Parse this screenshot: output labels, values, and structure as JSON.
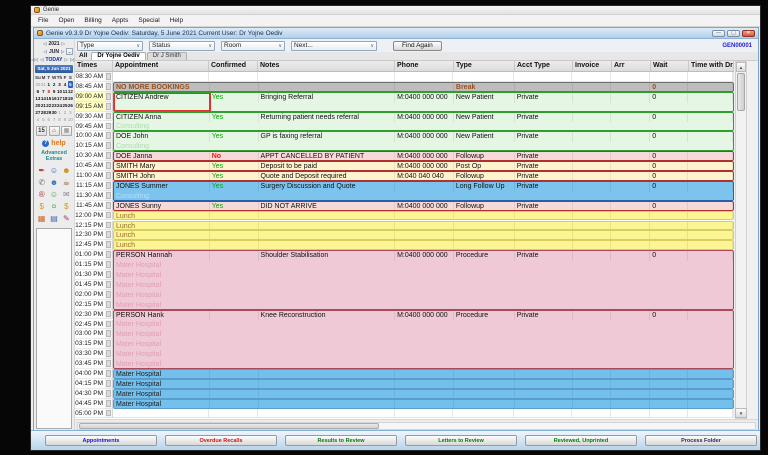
{
  "app": {
    "window_title": "Genie",
    "menu_items": [
      "File",
      "Open",
      "Billing",
      "Appts",
      "Special",
      "Help"
    ]
  },
  "inner_window": {
    "title": "Genie v9.3.9   Dr Yojne Oediv: Saturday, 5 June 2021    Current User: Dr Yojne Oediv",
    "account_code": "GEN00001",
    "toolbar": {
      "dropdowns": [
        "Type",
        "Status",
        "Room",
        "Next..."
      ],
      "find_again_label": "Find Again"
    },
    "doctor_tabs": {
      "all_label": "All",
      "tabs": [
        "Dr Yojne Oediv",
        "Dr J Smith"
      ],
      "selected": "Dr Yojne Oediv"
    }
  },
  "calendar": {
    "year": "2021",
    "month": "JUN",
    "today_label": "TODAY",
    "selected_date_label": "Sat, 5 Jun 2021",
    "day_names": [
      "Su",
      "M",
      "T",
      "W",
      "Th",
      "F",
      "S"
    ],
    "weeks": [
      [
        {
          "d": "30",
          "c": "m"
        },
        {
          "d": "31",
          "c": "m"
        },
        {
          "d": "1"
        },
        {
          "d": "2"
        },
        {
          "d": "3"
        },
        {
          "d": "4"
        },
        {
          "d": "5",
          "c": "s"
        }
      ],
      [
        {
          "d": "6"
        },
        {
          "d": "7"
        },
        {
          "d": "8",
          "c": "r"
        },
        {
          "d": "9"
        },
        {
          "d": "10"
        },
        {
          "d": "11"
        },
        {
          "d": "12"
        }
      ],
      [
        {
          "d": "13"
        },
        {
          "d": "14"
        },
        {
          "d": "15"
        },
        {
          "d": "16"
        },
        {
          "d": "17"
        },
        {
          "d": "18"
        },
        {
          "d": "19"
        }
      ],
      [
        {
          "d": "20"
        },
        {
          "d": "21"
        },
        {
          "d": "22"
        },
        {
          "d": "23"
        },
        {
          "d": "24"
        },
        {
          "d": "25"
        },
        {
          "d": "26"
        }
      ],
      [
        {
          "d": "27"
        },
        {
          "d": "28"
        },
        {
          "d": "29"
        },
        {
          "d": "30"
        },
        {
          "d": "1",
          "c": "m"
        },
        {
          "d": "2",
          "c": "m"
        },
        {
          "d": "3",
          "c": "m"
        }
      ],
      [
        {
          "d": "4",
          "c": "m"
        },
        {
          "d": "5",
          "c": "m"
        },
        {
          "d": "6",
          "c": "m"
        },
        {
          "d": "7",
          "c": "m"
        },
        {
          "d": "8",
          "c": "m"
        },
        {
          "d": "9",
          "c": "m"
        },
        {
          "d": "10",
          "c": "m"
        }
      ]
    ]
  },
  "sidebar": {
    "quick_buttons": [
      {
        "name": "interval-15-button",
        "glyph": "15",
        "color": "#333333"
      },
      {
        "name": "home-icon",
        "glyph": "⌂",
        "color": "#c42020"
      },
      {
        "name": "grid-view-icon",
        "glyph": "▦",
        "color": "#8a8a8a"
      }
    ],
    "help_label": "help",
    "help_icon_glyph": "?",
    "advanced_extras_label": "Advanced Extras",
    "tool_icons": [
      {
        "name": "pen-icon",
        "glyph": "✒",
        "color": "#b03020"
      },
      {
        "name": "patient-add-icon",
        "glyph": "☺",
        "color": "#2858b8"
      },
      {
        "name": "patients-icon",
        "glyph": "☻",
        "color": "#c89018"
      },
      {
        "name": "phone-icon",
        "glyph": "✆",
        "color": "#687888"
      },
      {
        "name": "staff-icon",
        "glyph": "☻",
        "color": "#3878c0"
      },
      {
        "name": "coffee-icon",
        "glyph": "☕",
        "color": "#7a4a20"
      },
      {
        "name": "registered-icon",
        "glyph": "®",
        "color": "#c03030"
      },
      {
        "name": "person-icon",
        "glyph": "☺",
        "color": "#48a048"
      },
      {
        "name": "mail-icon",
        "glyph": "✉",
        "color": "#888898"
      },
      {
        "name": "billing-icon",
        "glyph": "$",
        "color": "#c8a018"
      },
      {
        "name": "money-icon",
        "glyph": "¤",
        "color": "#58a858"
      },
      {
        "name": "payment-icon",
        "glyph": "$",
        "color": "#c8a018"
      },
      {
        "name": "chart-icon",
        "glyph": "▦",
        "color": "#d06828"
      },
      {
        "name": "ledger-icon",
        "glyph": "▤",
        "color": "#4868b0"
      },
      {
        "name": "brush-icon",
        "glyph": "✎",
        "color": "#a03868"
      }
    ]
  },
  "schedule": {
    "columns": [
      "Times",
      "Appointment",
      "Confirmed",
      "Notes",
      "Phone",
      "Type",
      "Acct Type",
      "Invoice",
      "Arr",
      "Wait",
      "Time with Dr"
    ],
    "times": [
      "08:30 AM",
      "08:45 AM",
      "09:00 AM",
      "09:15 AM",
      "09:30 AM",
      "09:45 AM",
      "10:00 AM",
      "10:15 AM",
      "10:30 AM",
      "10:45 AM",
      "11:00 AM",
      "11:15 AM",
      "11:30 AM",
      "11:45 AM",
      "12:00 PM",
      "12:15 PM",
      "12:30 PM",
      "12:45 PM",
      "01:00 PM",
      "01:15 PM",
      "01:30 PM",
      "01:45 PM",
      "02:00 PM",
      "02:15 PM",
      "02:30 PM",
      "02:45 PM",
      "03:00 PM",
      "03:15 PM",
      "03:30 PM",
      "03:45 PM",
      "04:00 PM",
      "04:15 PM",
      "04:30 PM",
      "04:45 PM",
      "05:00 PM"
    ],
    "highlighted_times": [
      "09:00 AM",
      "09:15 AM"
    ],
    "blocks": [
      {
        "time": "08:30 AM",
        "span": 1,
        "style": "empty"
      },
      {
        "time": "08:45 AM",
        "span": 1,
        "style": "break",
        "appointment": "NO MORE BOOKINGS",
        "type": "Break",
        "wait": "0"
      },
      {
        "time": "09:00 AM",
        "span": 2,
        "style": "green",
        "selected": true,
        "appointment": "CITIZEN Andrew",
        "confirmed": "Yes",
        "notes": "Bringing Referral",
        "phone": "M:0400 000 000",
        "type": "New Patient",
        "acct_type": "Private",
        "wait": "0"
      },
      {
        "time": "09:30 AM",
        "span": 2,
        "style": "green",
        "appointment": "CITIZEN Anna",
        "confirmed": "Yes",
        "notes": "Returning patient needs referral",
        "phone": "M:0400 000 000",
        "type": "New Patient",
        "acct_type": "Private",
        "wait": "0",
        "sub": [
          "Consulting"
        ]
      },
      {
        "time": "10:00 AM",
        "span": 2,
        "style": "green",
        "appointment": "DOE John",
        "confirmed": "Yes",
        "notes": "GP is faxing referral",
        "phone": "M:0400 000 000",
        "type": "New Patient",
        "acct_type": "Private",
        "wait": "0",
        "sub": [
          "Consulting"
        ]
      },
      {
        "time": "10:30 AM",
        "span": 1,
        "style": "pink",
        "appointment": "DOE Janna",
        "confirmed": "No",
        "notes": "APPT CANCELLED BY PATIENT",
        "phone": "M:0400 000 000",
        "type": "Followup",
        "acct_type": "Private",
        "wait": "0"
      },
      {
        "time": "10:45 AM",
        "span": 1,
        "style": "yellowred",
        "appointment": "SMITH Mary",
        "confirmed": "Yes",
        "notes": "Deposit to be paid",
        "phone": "M:0400 000 000",
        "type": "Post Op",
        "acct_type": "Private",
        "wait": "0"
      },
      {
        "time": "11:00 AM",
        "span": 1,
        "style": "yellowred",
        "appointment": "SMITH John",
        "confirmed": "Yes",
        "notes": "Quote and Deposit required",
        "phone": "M:040 040 040",
        "type": "Followup",
        "acct_type": "Private",
        "wait": "0"
      },
      {
        "time": "11:15 AM",
        "span": 2,
        "style": "blue",
        "appointment": "JONES Summer",
        "confirmed": "Yes",
        "notes": "Surgery Discussion and Quote",
        "type": "Long Follow Up",
        "acct_type": "Private",
        "wait": "0",
        "sub": [
          "Consulting"
        ]
      },
      {
        "time": "11:45 AM",
        "span": 1,
        "style": "pink",
        "appointment": "JONES Sunny",
        "confirmed": "Yes",
        "notes": "DID NOT ARRIVE",
        "phone": "M:0400 000 000",
        "type": "Followup",
        "acct_type": "Private",
        "wait": "0"
      },
      {
        "time": "12:00 PM",
        "span": 1,
        "style": "lunch",
        "appointment": "Lunch"
      },
      {
        "time": "12:15 PM",
        "span": 1,
        "style": "lunch",
        "appointment": "Lunch"
      },
      {
        "time": "12:30 PM",
        "span": 1,
        "style": "lunch",
        "appointment": "Lunch"
      },
      {
        "time": "12:45 PM",
        "span": 1,
        "style": "lunch",
        "appointment": "Lunch"
      },
      {
        "time": "01:00 PM",
        "span": 6,
        "style": "mauve",
        "appointment": "PERSON Hannah",
        "notes": "Shoulder Stabilisation",
        "phone": "M:0400 000 000",
        "type": "Procedure",
        "acct_type": "Private",
        "wait": "0",
        "sub": [
          "Mater Hospital",
          "Mater Hospital",
          "Mater Hospital",
          "Mater Hospital",
          "Mater Hospital"
        ]
      },
      {
        "time": "02:30 PM",
        "span": 6,
        "style": "mauve",
        "appointment": "PERSON Hank",
        "notes": "Knee Reconstruction",
        "phone": "M:0400 000 000",
        "type": "Procedure",
        "acct_type": "Private",
        "wait": "0",
        "sub": [
          "Mater Hospital",
          "Mater Hospital",
          "Mater Hospital",
          "Mater Hospital",
          "Mater Hospital"
        ]
      },
      {
        "time": "04:00 PM",
        "span": 1,
        "style": "bluesolid",
        "appointment": "Mater Hospital"
      },
      {
        "time": "04:15 PM",
        "span": 1,
        "style": "bluesolid",
        "appointment": "Mater Hospital"
      },
      {
        "time": "04:30 PM",
        "span": 1,
        "style": "bluesolid",
        "appointment": "Mater Hospital"
      },
      {
        "time": "04:45 PM",
        "span": 1,
        "style": "bluesolid",
        "appointment": "Mater Hospital"
      },
      {
        "time": "05:00 PM",
        "span": 1,
        "style": "empty"
      }
    ]
  },
  "footer_tabs": [
    {
      "label": "Appointments",
      "color": "#1414c8"
    },
    {
      "label": "Overdue Recalls",
      "color": "#c81414"
    },
    {
      "label": "Results to Review",
      "color": "#0a780a"
    },
    {
      "label": "Letters to Review",
      "color": "#0a780a"
    },
    {
      "label": "Reviewed, Unprinted",
      "color": "#0a780a"
    },
    {
      "label": "Process Folder",
      "color": "#28285a"
    }
  ]
}
